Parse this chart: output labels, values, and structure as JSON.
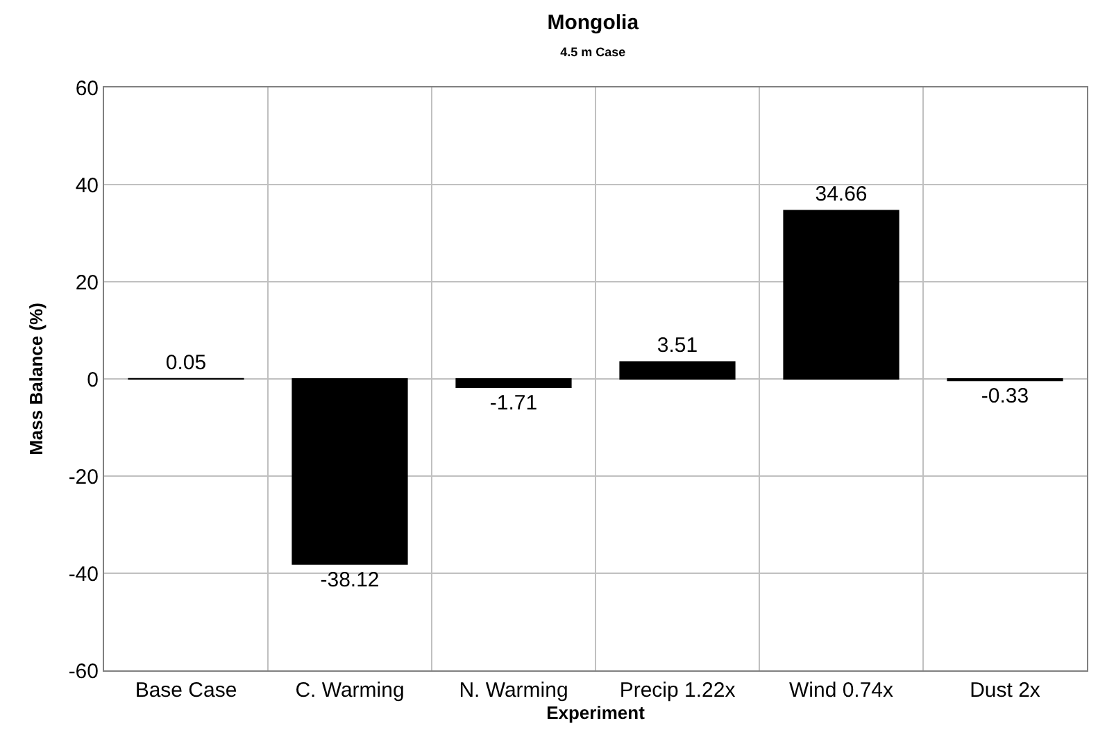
{
  "chart_data": {
    "type": "bar",
    "title": "Mongolia",
    "subtitle": "4.5 m Case",
    "xlabel": "Experiment",
    "ylabel": "Mass Balance (%)",
    "categories": [
      "Base Case",
      "C. Warming",
      "N. Warming",
      "Precip 1.22x",
      "Wind 0.74x",
      "Dust 2x"
    ],
    "values": [
      0.05,
      -38.12,
      -1.71,
      3.51,
      34.66,
      -0.33
    ],
    "color": "#000000",
    "ylim": [
      -60,
      60
    ],
    "yticks": [
      -60,
      -40,
      -20,
      0,
      20,
      40,
      60
    ],
    "grid": true,
    "data_labels": true
  }
}
